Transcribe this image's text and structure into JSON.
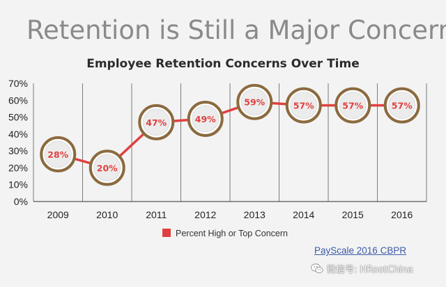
{
  "slide": {
    "title": "Retention is Still a Major Concern"
  },
  "source": "PayScale 2016 CBPR",
  "watermark": {
    "text": "微信号: HRootChina",
    "icon": "wechat-icon"
  },
  "colors": {
    "line": "#e04040",
    "bubble_border": "#8b6a3e",
    "bubble_fill": "#ffffff",
    "bubble_text": "#e04040",
    "axis_text": "#222222"
  },
  "chart_data": {
    "type": "line",
    "title": "Employee Retention Concerns Over Time",
    "categories": [
      "2009",
      "2010",
      "2011",
      "2012",
      "2013",
      "2014",
      "2015",
      "2016"
    ],
    "series": [
      {
        "name": "Percent High or Top Concern",
        "values": [
          28,
          20,
          47,
          49,
          59,
          57,
          57,
          57
        ],
        "labels": [
          "28%",
          "20%",
          "47%",
          "49%",
          "59%",
          "57%",
          "57%",
          "57%"
        ]
      }
    ],
    "yticks": [
      "0%",
      "10%",
      "20%",
      "30%",
      "40%",
      "50%",
      "60%",
      "70%"
    ],
    "ylim": [
      0,
      70
    ],
    "xlabel": "",
    "ylabel": "",
    "grid": "vertical",
    "legend": "bottom-center"
  }
}
